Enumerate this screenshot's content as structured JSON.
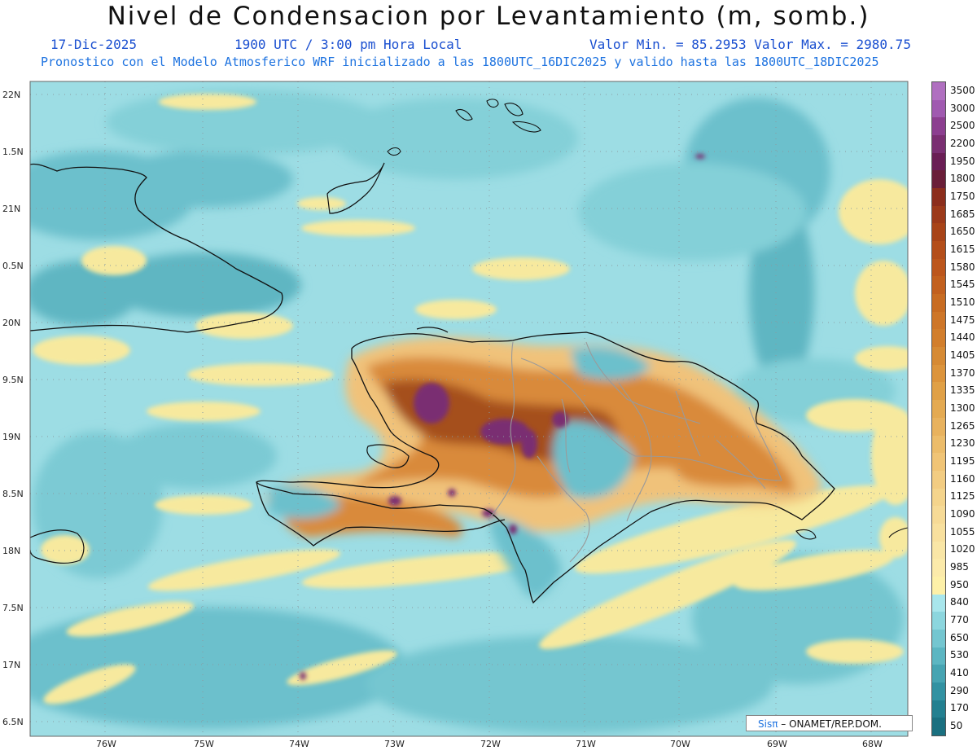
{
  "header": {
    "title": "Nivel de Condensacion por Levantamiento (m, somb.)",
    "date": "17-Dic-2025",
    "time": "1900 UTC / 3:00 pm Hora Local",
    "min_max": "Valor Min. = 85.2953  Valor Max. = 2980.75",
    "description": "Pronostico con el Modelo Atmosferico WRF inicializado a las 1800UTC_16DIC2025 y valido hasta las  1800UTC_18DIC2025"
  },
  "axes": {
    "lat_labels": [
      "22N",
      "1.5N",
      "21N",
      "0.5N",
      "20N",
      "9.5N",
      "19N",
      "8.5N",
      "18N",
      "7.5N",
      "17N",
      "6.5N"
    ],
    "lon_labels": [
      "76W",
      "75W",
      "74W",
      "73W",
      "72W",
      "71W",
      "70W",
      "69W",
      "68W"
    ]
  },
  "credit": {
    "sis": "Sisπ",
    "org": "– ONAMET/REP.DOM."
  },
  "colorbar": {
    "labels": [
      "3500",
      "3000",
      "2500",
      "2200",
      "1950",
      "1800",
      "1750",
      "1685",
      "1650",
      "1615",
      "1580",
      "1545",
      "1510",
      "1475",
      "1440",
      "1405",
      "1370",
      "1335",
      "1300",
      "1265",
      "1230",
      "1195",
      "1160",
      "1125",
      "1090",
      "1055",
      "1020",
      "985",
      "950",
      "840",
      "770",
      "650",
      "530",
      "410",
      "290",
      "170",
      "50"
    ],
    "colors": [
      "#b070c0",
      "#a05ab0",
      "#8c3f90",
      "#7a2f72",
      "#6a1e55",
      "#6a1e38",
      "#8c2e1c",
      "#9c3a1a",
      "#a84418",
      "#b44e1a",
      "#bc561c",
      "#c2601e",
      "#c86c22",
      "#ce7628",
      "#d27e2c",
      "#d68a34",
      "#dc943c",
      "#e0a046",
      "#e4aa52",
      "#e8b25e",
      "#ecbc6a",
      "#f0c476",
      "#f2cc82",
      "#f4d48c",
      "#f6da96",
      "#f8e09e",
      "#f9e6a6",
      "#fbeaaa",
      "#fdf0a8",
      "#a8e6ec",
      "#8cd6de",
      "#74c6d0",
      "#5cb6c2",
      "#46a4b2",
      "#3292a2",
      "#238090",
      "#1a7080"
    ]
  },
  "map": {
    "colors": {
      "ocean": "#9ddde4",
      "shelf": "#6cc0cc",
      "deep": "#55aebb",
      "yellow": "#f7e99e",
      "orange_light": "#f0c27a",
      "orange": "#d98a3a",
      "brown": "#a5501f",
      "purple": "#7a2f72",
      "coast": "#111111",
      "provinces": "#9a9a9a"
    }
  }
}
